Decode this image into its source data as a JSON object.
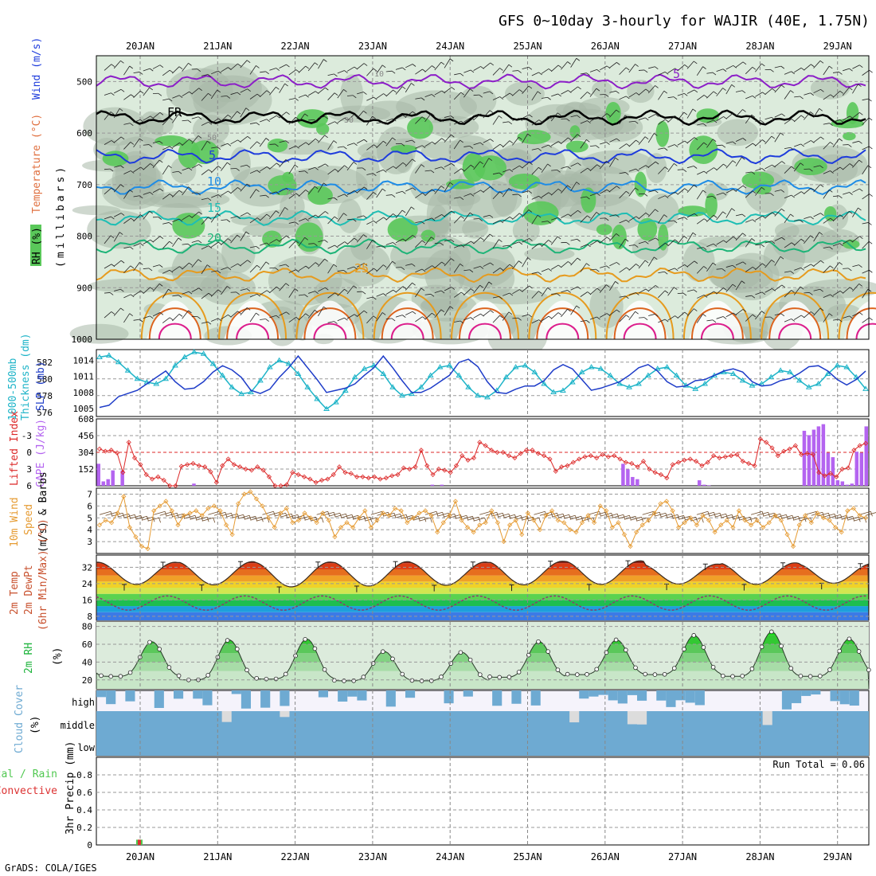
{
  "title": "GFS 0~10day 3-hourly for WAJIR (40E, 1.75N)",
  "footer": "GrADS: COLA/IGES",
  "run_total": "Run Total = 0.06",
  "dates": [
    "20JAN",
    "21JAN",
    "22JAN",
    "23JAN",
    "24JAN",
    "25JAN",
    "26JAN",
    "27JAN",
    "28JAN",
    "29JAN"
  ],
  "colors": {
    "rh_green": "#5ac85a",
    "rh_dark": "#a8b8a8",
    "rh_light": "#dcebdc",
    "temp_purple": "#8c1ec8",
    "temp_blue": "#1e3cdc",
    "temp_lblue": "#1e8ce6",
    "temp_cyan": "#1ebeb4",
    "temp_green": "#1eb478",
    "temp_orange": "#e69b1e",
    "temp_dorange": "#dc641e",
    "temp_magenta": "#dc1e8c",
    "freezing": "#000000",
    "slp": "#1e3cc8",
    "thickness": "#1eb4c8",
    "lifted": "#dc2828",
    "cape": "#b464f0",
    "wind": "#e69b32",
    "cloud": "#6eaad2",
    "precip_green": "#50c850",
    "precip_red": "#dc3232"
  },
  "chart_data": [
    {
      "type": "heatmap",
      "name": "upper-air",
      "ylabel": [
        "RH (%)",
        "Temperature (°C)",
        "Wind (m/s)",
        "(millibars)"
      ],
      "y_ticks": [
        500,
        600,
        700,
        800,
        900,
        1000
      ],
      "ylim": [
        450,
        1000
      ],
      "contour_labels": [
        {
          "text": "5",
          "isobar": "~500mb"
        },
        {
          "text": "FR",
          "isobar": "~570mb"
        },
        {
          "text": "5",
          "isobar": "~650mb"
        },
        {
          "text": "10",
          "isobar": "~700mb"
        },
        {
          "text": "15",
          "isobar": "~760mb"
        },
        {
          "text": "20",
          "isobar": "~810mb"
        },
        {
          "text": "25",
          "isobar": "~880mb"
        },
        {
          "text": "10",
          "isobar": "~490mb"
        },
        {
          "text": "30",
          "isobar": "~580mb"
        },
        {
          "text": "50",
          "isobar": "~620mb"
        },
        {
          "text": "70",
          "isobar": "~710mb"
        }
      ],
      "temperature_isotherms": [
        {
          "value": -5,
          "mean_pressure": 500
        },
        {
          "value": 0,
          "mean_pressure": 570
        },
        {
          "value": 5,
          "mean_pressure": 645
        },
        {
          "value": 10,
          "mean_pressure": 705
        },
        {
          "value": 15,
          "mean_pressure": 765
        },
        {
          "value": 20,
          "mean_pressure": 820
        },
        {
          "value": 25,
          "mean_pressure": 875
        }
      ]
    },
    {
      "type": "line",
      "name": "slp-thickness",
      "ylabel_left": [
        "1000-500mb",
        "Thickness (dm)"
      ],
      "ylabel_right": "SLP (mb)",
      "left_ticks": [
        576,
        578,
        580,
        582
      ],
      "left_ylim": [
        575.5,
        583.5
      ],
      "right_ticks": [
        1005,
        1008,
        1011,
        1014
      ],
      "series": [
        {
          "name": "SLP (mb)",
          "axis": "right",
          "values": [
            1005.2,
            1005.6,
            1007.2,
            1007.8,
            1008.4,
            1009.6,
            1010.8,
            1012.0,
            1010.0,
            1008.6,
            1008.8,
            1010.0,
            1011.8,
            1013.0,
            1012.2,
            1010.8,
            1008.4,
            1007.8,
            1008.6,
            1010.8,
            1012.6,
            1014.8,
            1012.6,
            1010.4,
            1008.0,
            1008.4,
            1008.8,
            1009.6,
            1011.2,
            1012.6,
            1014.8,
            1012.6,
            1010.2,
            1008.0,
            1008.0,
            1008.8,
            1010.0,
            1011.2,
            1013.6,
            1014.2,
            1012.8,
            1010.0,
            1008.0,
            1007.8,
            1008.6,
            1009.2,
            1009.2,
            1010.2,
            1012.2,
            1013.2,
            1012.4,
            1010.4,
            1008.4,
            1008.8,
            1009.4,
            1010.0,
            1011.2,
            1012.6,
            1013.2,
            1012.0,
            1010.0,
            1009.0,
            1009.2,
            1010.2,
            1010.4,
            1011.2,
            1012.0,
            1012.4,
            1011.8,
            1010.0,
            1009.2,
            1009.4,
            1010.2,
            1010.6,
            1011.6,
            1012.8,
            1013.0,
            1012.0,
            1010.4,
            1009.4,
            1010.4,
            1012.0
          ]
        },
        {
          "name": "1000-500mb Thickness (dm)",
          "axis": "left",
          "values": [
            582.6,
            582.8,
            582.0,
            581.0,
            580.0,
            579.6,
            579.4,
            580.0,
            581.6,
            582.6,
            583.2,
            583.0,
            581.8,
            580.4,
            579.0,
            578.2,
            578.4,
            579.8,
            581.4,
            582.2,
            581.8,
            580.6,
            579.0,
            577.6,
            576.4,
            577.2,
            578.6,
            580.2,
            581.2,
            581.6,
            580.6,
            579.0,
            578.0,
            578.2,
            579.0,
            580.4,
            581.4,
            581.6,
            580.4,
            579.0,
            578.0,
            577.8,
            578.6,
            580.2,
            581.4,
            581.6,
            580.8,
            579.4,
            578.4,
            578.6,
            579.6,
            580.8,
            581.4,
            581.2,
            580.4,
            579.4,
            579.0,
            579.4,
            580.4,
            581.2,
            581.4,
            580.4,
            579.2,
            578.8,
            579.4,
            580.4,
            580.8,
            580.6,
            579.8,
            579.2,
            579.4,
            580.2,
            581.0,
            580.8,
            579.8,
            579.0,
            579.4,
            580.6,
            581.6,
            581.4,
            580.2,
            578.8
          ]
        }
      ]
    },
    {
      "type": "bar",
      "name": "lifted-cape",
      "ylabel_left": "Lifted Index",
      "ylabel_right": "CAPE (J/kg)",
      "left_ticks": [
        -3,
        0,
        3,
        6
      ],
      "right_ticks": [
        152,
        304,
        456,
        608
      ],
      "cape_ylim": [
        0,
        608
      ],
      "lifted_ylim": [
        6,
        -6
      ],
      "cape": [
        200,
        40,
        60,
        140,
        0,
        140,
        0,
        0,
        0,
        0,
        0,
        0,
        0,
        0,
        0,
        0,
        0,
        0,
        0,
        0,
        20,
        0,
        0,
        0,
        0,
        0,
        0,
        0,
        0,
        0,
        0,
        0,
        0,
        0,
        0,
        0,
        0,
        0,
        0,
        0,
        0,
        0,
        0,
        0,
        0,
        0,
        0,
        0,
        0,
        0,
        0,
        0,
        0,
        0,
        0,
        0,
        0,
        0,
        0,
        0,
        0,
        0,
        0,
        0,
        0,
        0,
        0,
        0,
        0,
        0,
        10,
        0,
        10,
        0,
        0,
        0,
        0,
        0,
        0,
        0,
        0,
        0,
        0,
        0,
        0,
        0,
        0,
        0,
        0,
        0,
        0,
        0,
        0,
        0,
        0,
        0,
        0,
        0,
        0,
        0,
        0,
        0,
        0,
        0,
        0,
        0,
        0,
        0,
        0,
        0,
        200,
        150,
        80,
        60,
        0,
        0,
        0,
        0,
        0,
        0,
        0,
        0,
        0,
        0,
        0,
        0,
        50,
        10,
        5,
        0,
        0,
        0,
        0,
        0,
        0,
        0,
        0,
        0,
        0,
        0,
        0,
        0,
        0,
        0,
        0,
        0,
        0,
        0,
        500,
        460,
        510,
        540,
        560,
        300,
        260,
        50,
        40,
        10,
        20,
        310,
        300,
        540
      ],
      "lifted": [
        -0.6,
        -0.2,
        -0.4,
        0.1,
        3.6,
        -1.8,
        1.0,
        2.2,
        4.0,
        4.8,
        4.4,
        5.0,
        6.5,
        8.5,
        2.5,
        2.2,
        2.0,
        2.4,
        2.6,
        3.5,
        5.4,
        2.4,
        1.2,
        2.2,
        2.6,
        3.0,
        3.2,
        2.6,
        3.2,
        4.4,
        6.2,
        6.2,
        5.8,
        3.6,
        4.0,
        4.4,
        4.8,
        5.4,
        5.0,
        4.8,
        4.0,
        2.6,
        3.6,
        3.8,
        4.4,
        4.4,
        4.6,
        4.4,
        4.8,
        4.6,
        4.2,
        4.0,
        2.8,
        3.0,
        2.6,
        -0.4,
        2.4,
        4.0,
        3.0,
        3.2,
        3.6,
        2.4,
        0.6,
        1.4,
        1.0,
        -1.8,
        -1.2,
        -0.4,
        0.0,
        0.0,
        0.6,
        1.0,
        0.2,
        -0.4,
        -0.4,
        0.2,
        0.6,
        1.2,
        3.4,
        2.6,
        2.4,
        1.8,
        1.2,
        0.8,
        0.6,
        1.0,
        0.4,
        0.8,
        0.6,
        1.2,
        1.8,
        2.0,
        2.6,
        1.6,
        3.0,
        3.6,
        4.0,
        4.6,
        2.2,
        1.8,
        1.4,
        1.2,
        1.6,
        2.4,
        1.8,
        0.6,
        1.0,
        0.8,
        0.6,
        0.4,
        1.6,
        2.0,
        2.4,
        -2.4,
        -1.8,
        -0.8,
        0.6,
        -0.2,
        -0.6,
        -1.2,
        0.4,
        0.2,
        0.4,
        3.6,
        4.2,
        3.8,
        4.4,
        3.0,
        2.8,
        -0.4,
        -1.2,
        -1.6
      ]
    },
    {
      "type": "line",
      "name": "wind",
      "ylabel": [
        "10m Wind",
        "Speed",
        "(m/s) & Barbs"
      ],
      "y_ticks": [
        3,
        4,
        5,
        6,
        7
      ],
      "ylim": [
        2,
        7.5
      ],
      "values": [
        4.4,
        4.8,
        4.6,
        5.4,
        6.8,
        4.2,
        3.4,
        2.6,
        2.4,
        5.6,
        6.0,
        6.4,
        5.6,
        4.4,
        5.2,
        5.4,
        5.6,
        5.2,
        5.8,
        6.0,
        5.6,
        4.4,
        3.6,
        6.2,
        7.0,
        7.2,
        6.6,
        6.0,
        5.0,
        4.2,
        5.4,
        5.8,
        4.6,
        4.8,
        5.4,
        5.0,
        4.6,
        5.4,
        4.8,
        3.4,
        4.2,
        4.6,
        4.2,
        5.0,
        5.6,
        4.2,
        4.8,
        5.4,
        5.2,
        5.8,
        5.6,
        4.6,
        5.0,
        5.4,
        5.6,
        5.2,
        3.8,
        4.6,
        5.2,
        6.4,
        4.8,
        4.2,
        3.8,
        4.4,
        4.6,
        5.6,
        4.6,
        3.0,
        4.4,
        4.8,
        3.6,
        5.4,
        4.8,
        4.0,
        5.2,
        5.6,
        4.8,
        4.6,
        4.0,
        3.8,
        4.6,
        5.2,
        4.6,
        6.0,
        5.6,
        4.2,
        4.6,
        3.6,
        2.6,
        3.8,
        4.4,
        4.8,
        5.4,
        6.2,
        6.4,
        5.6,
        4.2,
        4.6,
        5.0,
        4.4,
        5.2,
        4.8,
        3.8,
        4.4,
        4.8,
        4.2,
        5.6,
        4.8,
        4.4,
        4.8,
        4.2,
        4.6,
        5.2,
        4.8,
        3.6,
        2.6,
        4.4,
        5.2,
        4.6,
        5.4,
        5.0,
        4.8,
        4.2,
        3.8,
        5.6,
        5.8,
        5.2,
        5.0
      ]
    },
    {
      "type": "area",
      "name": "temperature",
      "ylabel": [
        "2m Temp",
        "2m DewPt",
        "(6hr Min/Max) (°C)"
      ],
      "y_ticks": [
        8,
        16,
        24,
        32
      ],
      "ylim": [
        6,
        38
      ],
      "temp_max_days": [
        34.5,
        34.8,
        34.6,
        34.8,
        34.6,
        35.0,
        35.2,
        33.6,
        34.2,
        33.8
      ],
      "temp_min_days": [
        23.6,
        23.4,
        22.4,
        22.8,
        23.2,
        23.4,
        23.6,
        23.8,
        23.6,
        24.2
      ],
      "dewpt_mean": 14.5
    },
    {
      "type": "area",
      "name": "rh",
      "ylabel": [
        "2m RH",
        "(%)"
      ],
      "y_ticks": [
        20,
        40,
        60,
        80
      ],
      "ylim": [
        10,
        85
      ],
      "peaks": [
        63,
        65,
        66,
        52,
        51,
        63,
        65,
        70,
        74,
        66
      ],
      "troughs": [
        24,
        20,
        21,
        19,
        19,
        23,
        26,
        26,
        24,
        24
      ]
    },
    {
      "type": "bar",
      "name": "cloud",
      "ylabel": [
        "Cloud Cover",
        "(%)"
      ],
      "levels": [
        "high",
        "middle",
        "low"
      ]
    },
    {
      "type": "bar",
      "name": "precip",
      "ylabel": [
        "Total / Rain",
        "Convective",
        "3hr Precip (mm)"
      ],
      "y_ticks": [
        0,
        0.2,
        0.4,
        0.6,
        0.8
      ],
      "ylim": [
        0,
        1.0
      ],
      "bars": [
        {
          "date": "20JAN",
          "value": 0.06
        }
      ]
    }
  ]
}
